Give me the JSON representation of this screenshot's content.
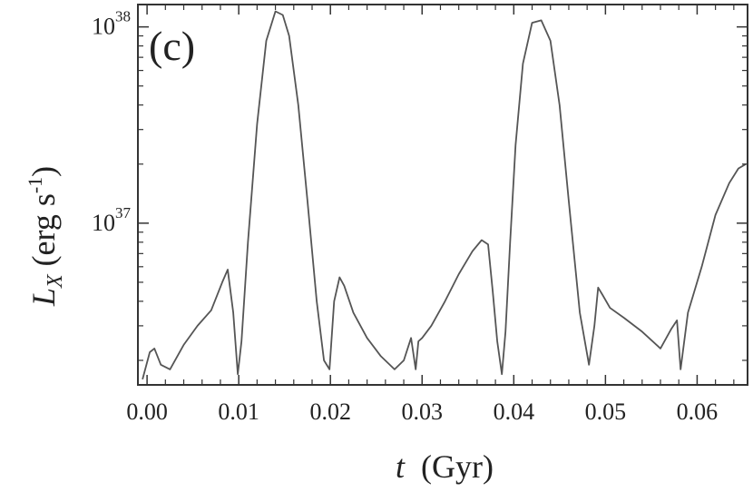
{
  "chart_data": {
    "type": "line",
    "panel_label": "(c)",
    "xlabel": {
      "var": "t",
      "unit": "(Gyr)"
    },
    "ylabel": {
      "var": "L",
      "sub": "X",
      "unit": " (erg s",
      "exp": "-1",
      "close": ")"
    },
    "xlim": [
      -0.001,
      0.0655
    ],
    "ylim": [
      1.5e+36,
      1.3e+38
    ],
    "yscale": "log",
    "xticks": [
      {
        "v": 0.0,
        "label": "0.00"
      },
      {
        "v": 0.01,
        "label": "0.01"
      },
      {
        "v": 0.02,
        "label": "0.02"
      },
      {
        "v": 0.03,
        "label": "0.03"
      },
      {
        "v": 0.04,
        "label": "0.04"
      },
      {
        "v": 0.05,
        "label": "0.05"
      },
      {
        "v": 0.06,
        "label": "0.06"
      }
    ],
    "yticks": [
      {
        "v": 1e+37,
        "base": "10",
        "exp": "37"
      },
      {
        "v": 1e+38,
        "base": "10",
        "exp": "38"
      }
    ],
    "series": [
      {
        "color": "#555555",
        "x": [
          -0.0005,
          0.0003,
          0.0008,
          0.0015,
          0.0025,
          0.004,
          0.0055,
          0.007,
          0.0082,
          0.0088,
          0.0094,
          0.0099,
          0.0103,
          0.011,
          0.012,
          0.013,
          0.014,
          0.0148,
          0.0155,
          0.0165,
          0.0175,
          0.0185,
          0.0193,
          0.0199,
          0.0204,
          0.021,
          0.0215,
          0.0225,
          0.024,
          0.0255,
          0.027,
          0.028,
          0.0288,
          0.0293,
          0.0296,
          0.03,
          0.031,
          0.0325,
          0.034,
          0.0355,
          0.0365,
          0.0372,
          0.0377,
          0.0382,
          0.0387,
          0.0391,
          0.0396,
          0.0402,
          0.041,
          0.042,
          0.043,
          0.044,
          0.045,
          0.046,
          0.0472,
          0.0482,
          0.0488,
          0.0492,
          0.0497,
          0.0505,
          0.052,
          0.054,
          0.056,
          0.0572,
          0.0578,
          0.0582,
          0.059,
          0.0605,
          0.062,
          0.0635,
          0.0645,
          0.0653
        ],
        "y": [
          1.6e+36,
          2.2e+36,
          2.3e+36,
          1.9e+36,
          1.8e+36,
          2.4e+36,
          3e+36,
          3.6e+36,
          5e+36,
          5.8e+36,
          3.5e+36,
          1.7e+36,
          2.5e+36,
          8e+36,
          3.2e+37,
          8.5e+37,
          1.2e+38,
          1.15e+38,
          9e+37,
          4e+37,
          1.3e+37,
          4e+36,
          2e+36,
          1.8e+36,
          4e+36,
          5.3e+36,
          4.8e+36,
          3.5e+36,
          2.6e+36,
          2.1e+36,
          1.8e+36,
          2e+36,
          2.6e+36,
          1.8e+36,
          2.5e+36,
          2.6e+36,
          3e+36,
          4e+36,
          5.5e+36,
          7.2e+36,
          8.2e+36,
          7.8e+36,
          4.5e+36,
          2.5e+36,
          1.7e+36,
          2.8e+36,
          8e+36,
          2.5e+37,
          6.5e+37,
          1.05e+38,
          1.08e+38,
          8.5e+37,
          4e+37,
          1.3e+37,
          3.5e+36,
          1.9e+36,
          3e+36,
          4.7e+36,
          4.3e+36,
          3.7e+36,
          3.3e+36,
          2.8e+36,
          2.3e+36,
          2.9e+36,
          3.2e+36,
          1.8e+36,
          3.5e+36,
          6e+36,
          1.1e+37,
          1.6e+37,
          1.9e+37,
          2e+37
        ]
      }
    ]
  }
}
